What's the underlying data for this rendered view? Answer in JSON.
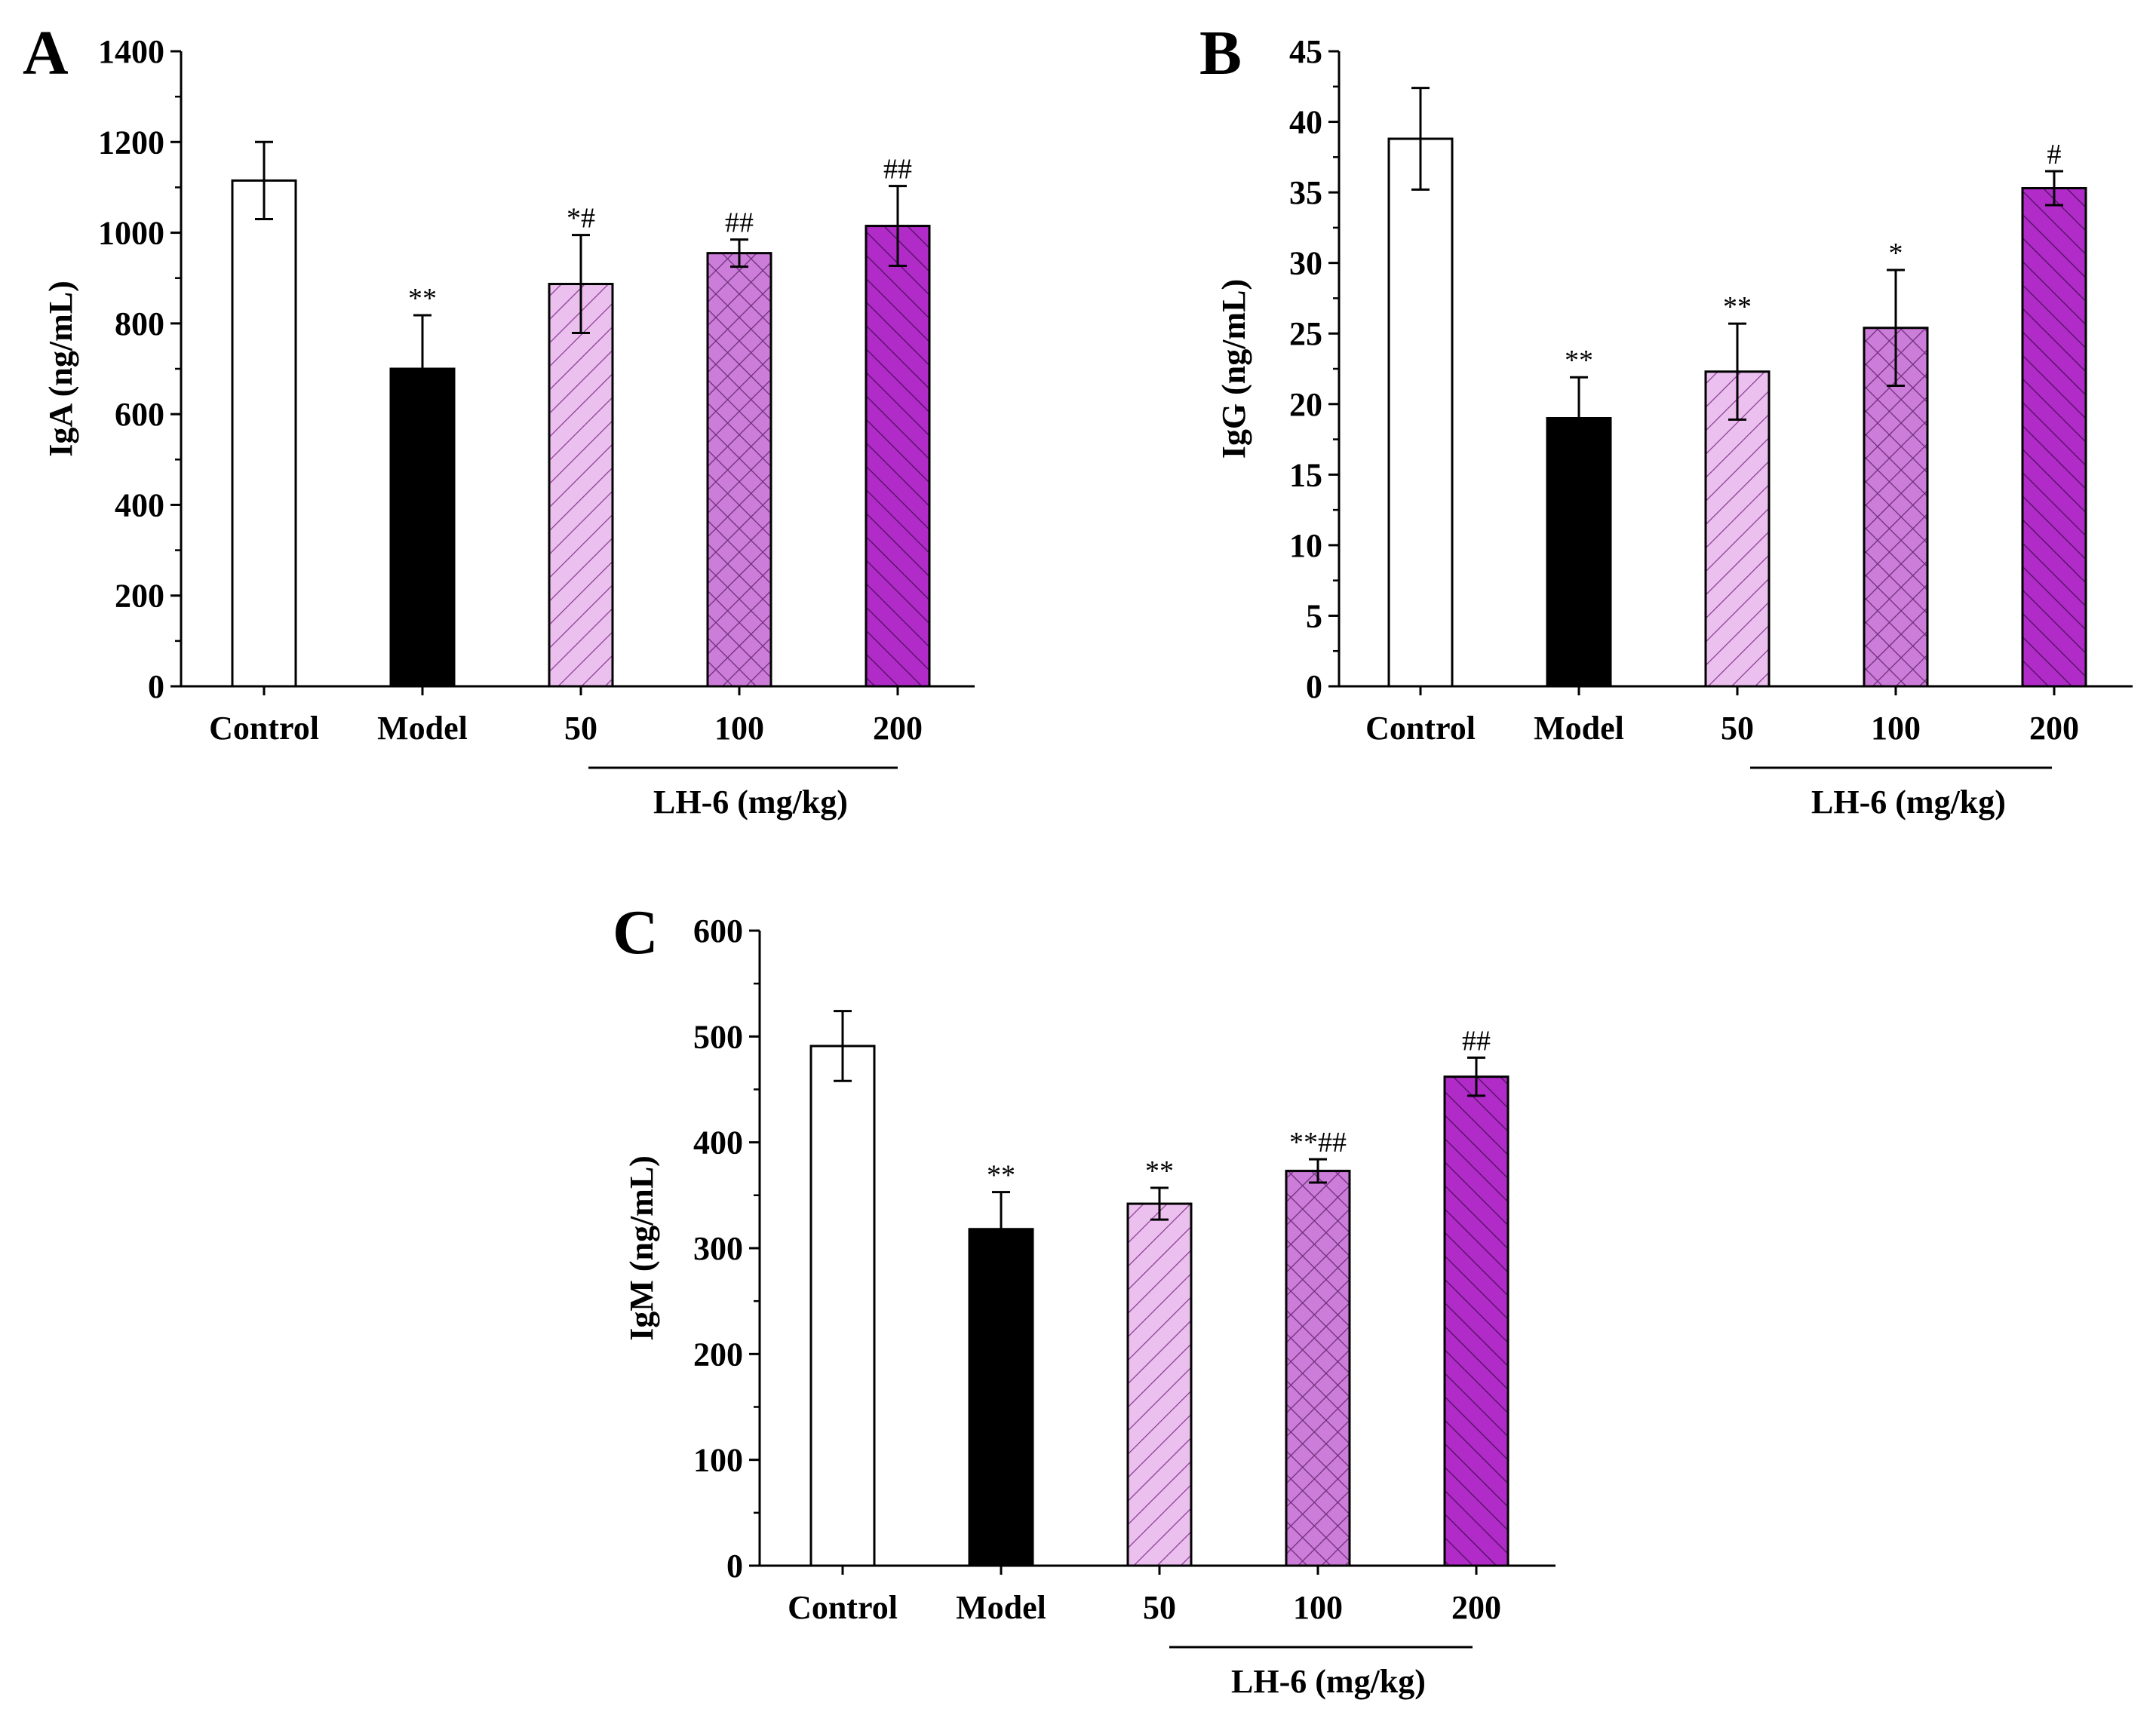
{
  "chart_data": [
    {
      "type": "bar",
      "panel": "A",
      "ylabel": "IgA (ng/mL)",
      "ylim": [
        0,
        1400
      ],
      "yticks": [
        0,
        200,
        400,
        600,
        800,
        1000,
        1200,
        1400
      ],
      "categories": [
        "Control",
        "Model",
        "50",
        "100",
        "200"
      ],
      "values": [
        1115,
        700,
        887,
        955,
        1015
      ],
      "errors": [
        85,
        118,
        108,
        30,
        88
      ],
      "significance": [
        "",
        "**",
        "*#",
        "##",
        "##"
      ],
      "group_label": "LH-6 (mg/kg)"
    },
    {
      "type": "bar",
      "panel": "B",
      "ylabel": "IgG (ng/mL)",
      "ylim": [
        0,
        45
      ],
      "yticks": [
        0,
        5,
        10,
        15,
        20,
        25,
        30,
        35,
        40,
        45
      ],
      "categories": [
        "Control",
        "Model",
        "50",
        "100",
        "200"
      ],
      "values": [
        38.8,
        19.0,
        22.3,
        25.4,
        35.3
      ],
      "errors": [
        3.6,
        2.9,
        3.4,
        4.1,
        1.2
      ],
      "significance": [
        "",
        "**",
        "**",
        "*",
        "#"
      ],
      "group_label": "LH-6 (mg/kg)"
    },
    {
      "type": "bar",
      "panel": "C",
      "ylabel": "IgM (ng/mL)",
      "ylim": [
        0,
        600
      ],
      "yticks": [
        0,
        100,
        200,
        300,
        400,
        500,
        600
      ],
      "categories": [
        "Control",
        "Model",
        "50",
        "100",
        "200"
      ],
      "values": [
        491,
        318,
        342,
        373,
        462
      ],
      "errors": [
        33,
        35,
        15,
        11,
        18
      ],
      "significance": [
        "",
        "**",
        "**",
        "**##",
        "##"
      ],
      "group_label": "LH-6 (mg/kg)"
    }
  ],
  "bar_styles": [
    {
      "fill": "#ffffff",
      "pattern": "none"
    },
    {
      "fill": "#000000",
      "pattern": "none"
    },
    {
      "fill": "#ebc0ee",
      "pattern": "diagonal",
      "line": "#8a3d93"
    },
    {
      "fill": "#cc7cd9",
      "pattern": "crosshatch",
      "line": "#6d2e78"
    },
    {
      "fill": "#b02bc8",
      "pattern": "backdiagonal",
      "line": "#4e0f5c"
    }
  ]
}
